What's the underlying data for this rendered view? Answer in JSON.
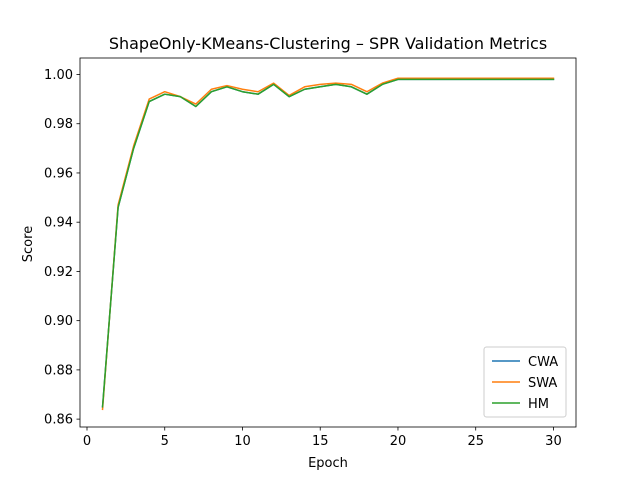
{
  "chart_data": {
    "type": "line",
    "title": "ShapeOnly-KMeans-Clustering – SPR Validation Metrics",
    "xlabel": "Epoch",
    "ylabel": "Score",
    "xlim": [
      -0.45,
      31.45
    ],
    "ylim": [
      0.8568,
      1.0067
    ],
    "xticks": [
      0,
      5,
      10,
      15,
      20,
      25,
      30
    ],
    "yticks": [
      0.86,
      0.88,
      0.9,
      0.92,
      0.94,
      0.96,
      0.98,
      1.0
    ],
    "ytick_labels": [
      "0.86",
      "0.88",
      "0.90",
      "0.92",
      "0.94",
      "0.96",
      "0.98",
      "1.00"
    ],
    "grid": false,
    "legend_position": "lower-right",
    "x": [
      1,
      2,
      3,
      4,
      5,
      6,
      7,
      8,
      9,
      10,
      11,
      12,
      13,
      14,
      15,
      16,
      17,
      18,
      19,
      20,
      21,
      22,
      23,
      24,
      25,
      26,
      27,
      28,
      29,
      30
    ],
    "series": [
      {
        "name": "CWA",
        "color": "#1f77b4",
        "values": [
          0.865,
          0.946,
          0.97,
          0.989,
          0.992,
          0.991,
          0.987,
          0.993,
          0.995,
          0.993,
          0.992,
          0.996,
          0.991,
          0.994,
          0.995,
          0.996,
          0.995,
          0.992,
          0.996,
          0.998,
          0.998,
          0.998,
          0.998,
          0.998,
          0.998,
          0.998,
          0.998,
          0.998,
          0.998,
          0.998
        ]
      },
      {
        "name": "SWA",
        "color": "#ff7f0e",
        "values": [
          0.864,
          0.947,
          0.971,
          0.99,
          0.993,
          0.991,
          0.988,
          0.994,
          0.9955,
          0.994,
          0.993,
          0.9965,
          0.9915,
          0.995,
          0.996,
          0.9965,
          0.996,
          0.993,
          0.9965,
          0.9985,
          0.9985,
          0.9985,
          0.9985,
          0.9985,
          0.9985,
          0.9985,
          0.9985,
          0.9985,
          0.9985,
          0.9985
        ]
      },
      {
        "name": "HM",
        "color": "#2ca02c",
        "values": [
          0.865,
          0.946,
          0.97,
          0.989,
          0.992,
          0.991,
          0.987,
          0.993,
          0.995,
          0.993,
          0.992,
          0.996,
          0.991,
          0.994,
          0.995,
          0.996,
          0.995,
          0.992,
          0.996,
          0.998,
          0.998,
          0.998,
          0.998,
          0.998,
          0.998,
          0.998,
          0.998,
          0.998,
          0.998,
          0.998
        ]
      }
    ]
  }
}
